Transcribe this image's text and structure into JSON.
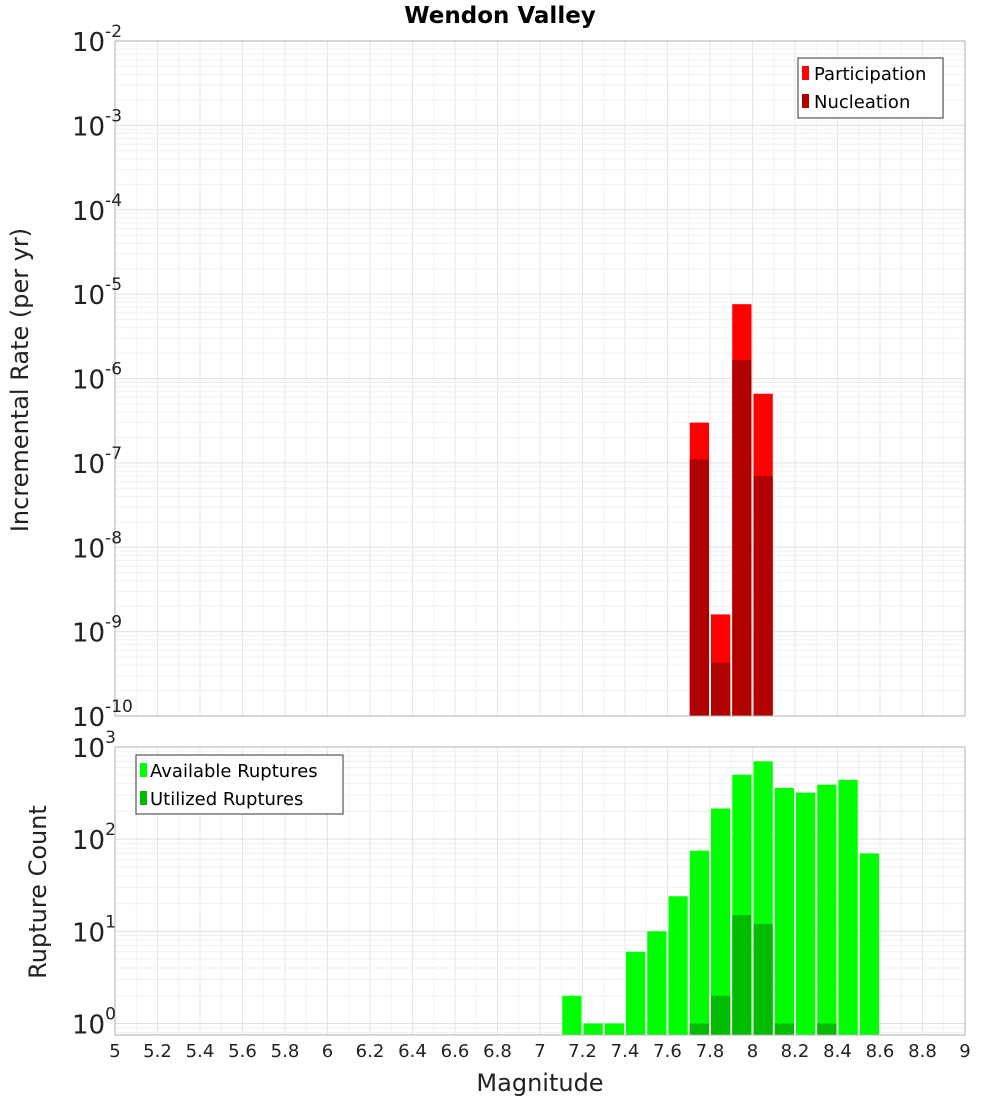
{
  "chart_data": [
    {
      "type": "bar",
      "title": "Wendon Valley",
      "xlabel": "Magnitude",
      "ylabel": "Incremental Rate (per yr)",
      "xlim": [
        5,
        9
      ],
      "ylim": [
        1e-10,
        0.01
      ],
      "yscale": "log",
      "grid": true,
      "legend_position": "top-right",
      "x_ticks": [
        "5",
        "5.2",
        "5.4",
        "5.6",
        "5.8",
        "6",
        "6.2",
        "6.4",
        "6.6",
        "6.8",
        "7",
        "7.2",
        "7.4",
        "7.6",
        "7.8",
        "8",
        "8.2",
        "8.4",
        "8.6",
        "8.8",
        "9"
      ],
      "y_ticks": [
        {
          "base": "10",
          "exp": "-10"
        },
        {
          "base": "10",
          "exp": "-9"
        },
        {
          "base": "10",
          "exp": "-8"
        },
        {
          "base": "10",
          "exp": "-7"
        },
        {
          "base": "10",
          "exp": "-6"
        },
        {
          "base": "10",
          "exp": "-5"
        },
        {
          "base": "10",
          "exp": "-4"
        },
        {
          "base": "10",
          "exp": "-3"
        },
        {
          "base": "10",
          "exp": "-2"
        }
      ],
      "bin_width": 0.1,
      "series": [
        {
          "name": "Participation",
          "color": "#ff0000",
          "points": [
            {
              "x": 7.75,
              "y": 3e-07
            },
            {
              "x": 7.85,
              "y": 1.6e-09
            },
            {
              "x": 7.95,
              "y": 7.6e-06
            },
            {
              "x": 8.05,
              "y": 6.6e-07
            }
          ]
        },
        {
          "name": "Nucleation",
          "color": "#b00000",
          "points": [
            {
              "x": 7.75,
              "y": 1.1e-07
            },
            {
              "x": 7.85,
              "y": 4.3e-10
            },
            {
              "x": 7.95,
              "y": 1.65e-06
            },
            {
              "x": 8.05,
              "y": 7e-08
            }
          ]
        }
      ]
    },
    {
      "type": "bar",
      "xlabel": "Magnitude",
      "ylabel": "Rupture Count",
      "xlim": [
        5,
        9
      ],
      "ylim": [
        0.75,
        1000
      ],
      "yscale": "log",
      "grid": true,
      "legend_position": "top-left",
      "x_ticks": [
        "5",
        "5.2",
        "5.4",
        "5.6",
        "5.8",
        "6",
        "6.2",
        "6.4",
        "6.6",
        "6.8",
        "7",
        "7.2",
        "7.4",
        "7.6",
        "7.8",
        "8",
        "8.2",
        "8.4",
        "8.6",
        "8.8",
        "9"
      ],
      "y_ticks": [
        {
          "base": "10",
          "exp": "0"
        },
        {
          "base": "10",
          "exp": "1"
        },
        {
          "base": "10",
          "exp": "2"
        },
        {
          "base": "10",
          "exp": "3"
        }
      ],
      "bin_width": 0.1,
      "series": [
        {
          "name": "Available Ruptures",
          "color": "#00ff00",
          "points": [
            {
              "x": 7.15,
              "y": 2
            },
            {
              "x": 7.25,
              "y": 1
            },
            {
              "x": 7.35,
              "y": 1
            },
            {
              "x": 7.45,
              "y": 6
            },
            {
              "x": 7.55,
              "y": 10
            },
            {
              "x": 7.65,
              "y": 24
            },
            {
              "x": 7.75,
              "y": 75
            },
            {
              "x": 7.85,
              "y": 215
            },
            {
              "x": 7.95,
              "y": 500
            },
            {
              "x": 8.05,
              "y": 700
            },
            {
              "x": 8.15,
              "y": 360
            },
            {
              "x": 8.25,
              "y": 320
            },
            {
              "x": 8.35,
              "y": 390
            },
            {
              "x": 8.45,
              "y": 440
            },
            {
              "x": 8.55,
              "y": 70
            }
          ]
        },
        {
          "name": "Utilized Ruptures",
          "color": "#00bb00",
          "points": [
            {
              "x": 7.75,
              "y": 1
            },
            {
              "x": 7.85,
              "y": 2
            },
            {
              "x": 7.95,
              "y": 15
            },
            {
              "x": 8.05,
              "y": 12
            },
            {
              "x": 8.15,
              "y": 1
            },
            {
              "x": 8.35,
              "y": 1
            }
          ]
        }
      ]
    }
  ]
}
